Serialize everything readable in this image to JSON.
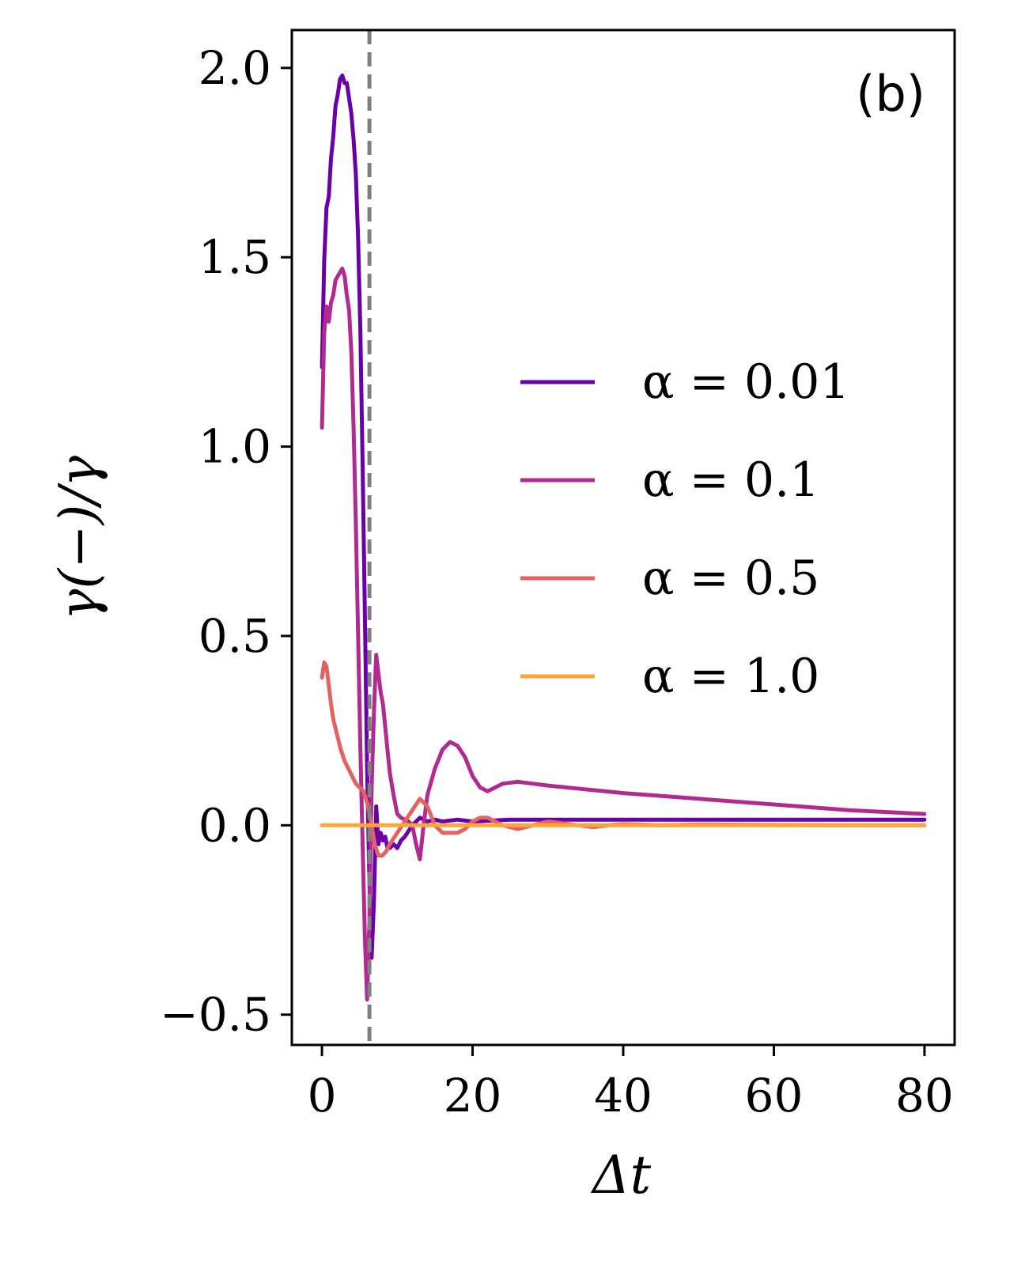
{
  "chart_data": {
    "type": "line",
    "panel_label": "(b)",
    "xlabel": "Δt",
    "ylabel": "γ(−)/γ",
    "xlim": [
      -4,
      84
    ],
    "ylim": [
      -0.58,
      2.1
    ],
    "x_ticks": [
      0,
      20,
      40,
      60,
      80
    ],
    "x_tick_labels": [
      "0",
      "20",
      "40",
      "60",
      "80"
    ],
    "y_ticks": [
      -0.5,
      0.0,
      0.5,
      1.0,
      1.5,
      2.0
    ],
    "y_tick_labels": [
      "−0.5",
      "0.0",
      "0.5",
      "1.0",
      "1.5",
      "2.0"
    ],
    "grid": false,
    "legend_position": "center-right",
    "vline": {
      "x": 6.3,
      "style": "dashed",
      "color": "#808080"
    },
    "series": [
      {
        "name": "α = 0.01",
        "color": "#6a00a8",
        "x": [
          0,
          0.3,
          0.6,
          0.9,
          1.2,
          1.5,
          1.8,
          2.1,
          2.4,
          2.7,
          3.0,
          3.3,
          3.6,
          3.9,
          4.2,
          4.5,
          4.8,
          5.1,
          5.4,
          5.7,
          6.0,
          6.3,
          6.6,
          6.9,
          7.2,
          7.5,
          7.8,
          8.1,
          8.4,
          8.7,
          9.0,
          9.5,
          10,
          10.5,
          11,
          12,
          13,
          14,
          15,
          16,
          18,
          20,
          25,
          30,
          40,
          50,
          60,
          70,
          80
        ],
        "y": [
          1.21,
          1.49,
          1.63,
          1.66,
          1.76,
          1.82,
          1.9,
          1.93,
          1.97,
          1.98,
          1.96,
          1.96,
          1.92,
          1.88,
          1.81,
          1.72,
          1.55,
          1.3,
          0.95,
          0.55,
          0.15,
          -0.15,
          -0.35,
          -0.2,
          0.05,
          -0.05,
          -0.02,
          -0.04,
          -0.03,
          -0.06,
          -0.06,
          -0.05,
          -0.06,
          -0.04,
          -0.03,
          0.0,
          0.02,
          0.01,
          0.015,
          0.01,
          0.015,
          0.01,
          0.015,
          0.015,
          0.015,
          0.015,
          0.015,
          0.015,
          0.015
        ]
      },
      {
        "name": "α = 0.1",
        "color": "#b12a90",
        "x": [
          0,
          0.3,
          0.6,
          0.9,
          1.2,
          1.5,
          1.8,
          2.1,
          2.4,
          2.7,
          3.0,
          3.3,
          3.6,
          3.9,
          4.2,
          4.5,
          4.8,
          5.1,
          5.4,
          5.7,
          6.0,
          6.3,
          6.6,
          6.9,
          7.2,
          7.5,
          7.8,
          8.1,
          8.4,
          8.7,
          9.0,
          9.5,
          10,
          10.5,
          11,
          11.5,
          12,
          12.5,
          13,
          13.5,
          14,
          15,
          16,
          17,
          18,
          19,
          20,
          21,
          22,
          23,
          24,
          26,
          28,
          30,
          40,
          50,
          60,
          70,
          80
        ],
        "y": [
          1.05,
          1.3,
          1.37,
          1.33,
          1.38,
          1.4,
          1.44,
          1.45,
          1.46,
          1.47,
          1.45,
          1.4,
          1.36,
          1.25,
          1.05,
          0.8,
          0.5,
          0.2,
          -0.05,
          -0.3,
          -0.46,
          -0.25,
          0.1,
          0.3,
          0.45,
          0.4,
          0.35,
          0.32,
          0.26,
          0.2,
          0.14,
          0.08,
          0.03,
          0.02,
          0.015,
          0.01,
          0.0,
          -0.05,
          -0.09,
          0.0,
          0.08,
          0.15,
          0.2,
          0.22,
          0.21,
          0.18,
          0.13,
          0.1,
          0.09,
          0.1,
          0.11,
          0.115,
          0.11,
          0.105,
          0.085,
          0.07,
          0.055,
          0.04,
          0.03
        ]
      },
      {
        "name": "α = 0.5",
        "color": "#e16462",
        "x": [
          0,
          0.3,
          0.6,
          0.9,
          1.2,
          1.5,
          2.0,
          2.5,
          3.0,
          3.5,
          4.0,
          4.5,
          5.0,
          5.5,
          6.0,
          6.5,
          7.0,
          7.5,
          8.0,
          8.5,
          9.0,
          10,
          11,
          12,
          13,
          14,
          15,
          16,
          17,
          18,
          19,
          20,
          21,
          22,
          23,
          24,
          25,
          26,
          27,
          28,
          30,
          32,
          34,
          36,
          38,
          40,
          45,
          50,
          60,
          70,
          80
        ],
        "y": [
          0.39,
          0.43,
          0.42,
          0.37,
          0.32,
          0.28,
          0.24,
          0.2,
          0.17,
          0.15,
          0.13,
          0.11,
          0.1,
          0.09,
          0.06,
          0.01,
          -0.05,
          -0.08,
          -0.08,
          -0.07,
          -0.05,
          -0.02,
          0.01,
          0.04,
          0.07,
          0.05,
          0.0,
          -0.02,
          -0.02,
          -0.02,
          -0.01,
          0.01,
          0.02,
          0.02,
          0.01,
          0.0,
          -0.005,
          -0.01,
          -0.005,
          0.0,
          0.01,
          0.005,
          0.0,
          -0.005,
          0.0,
          0.003,
          0.0,
          0.002,
          0.001,
          0.0,
          0.0
        ]
      },
      {
        "name": "α = 1.0",
        "color": "#fca636",
        "x": [
          0,
          80
        ],
        "y": [
          0.0,
          0.0
        ]
      }
    ]
  }
}
